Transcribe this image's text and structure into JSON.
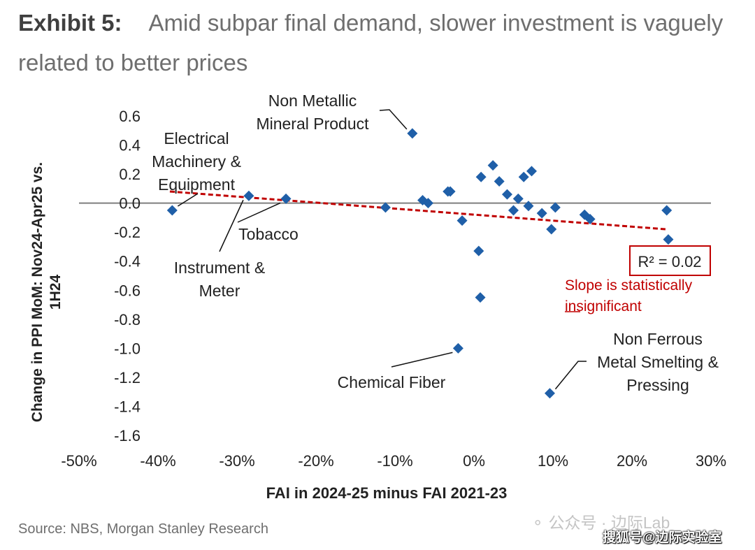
{
  "header": {
    "exhibit": "Exhibit 5:",
    "title": "Amid subpar final demand, slower investment is vaguely related to better prices"
  },
  "source": "Source: NBS, Morgan Stanley Research",
  "watermark": {
    "line1": "公众号 · 边际Lab",
    "line2": "搜狐号@边际实验室"
  },
  "colors": {
    "marker": "#1f5fa8",
    "trend": "#c00000",
    "zero_line": "#7f7f7f",
    "text": "#222222"
  },
  "chart_data": {
    "type": "scatter",
    "xlabel": "FAI in 2024-25 minus FAI 2021-23",
    "ylabel": "Change in PPI MoM: Nov24-Apr25 vs. 1H24",
    "xlim": [
      -50,
      30
    ],
    "ylim": [
      -1.6,
      0.6
    ],
    "xticks": [
      "-50%",
      "-40%",
      "-30%",
      "-20%",
      "-10%",
      "0%",
      "10%",
      "20%",
      "30%"
    ],
    "yticks": [
      "0.6",
      "0.4",
      "0.2",
      "0.0",
      "-0.2",
      "-0.4",
      "-0.6",
      "-0.8",
      "-1.0",
      "-1.2",
      "-1.4",
      "-1.6"
    ],
    "points": [
      {
        "x": -38.2,
        "y": -0.05
      },
      {
        "x": -28.5,
        "y": 0.05
      },
      {
        "x": -23.8,
        "y": 0.03
      },
      {
        "x": -11.2,
        "y": -0.03
      },
      {
        "x": -7.8,
        "y": 0.48
      },
      {
        "x": -6.5,
        "y": 0.02
      },
      {
        "x": -5.8,
        "y": 0.0
      },
      {
        "x": -3.3,
        "y": 0.08
      },
      {
        "x": -3.0,
        "y": 0.08
      },
      {
        "x": -2.0,
        "y": -1.0
      },
      {
        "x": -1.5,
        "y": -0.12
      },
      {
        "x": 0.6,
        "y": -0.33
      },
      {
        "x": 0.8,
        "y": -0.65
      },
      {
        "x": 0.9,
        "y": 0.18
      },
      {
        "x": 2.4,
        "y": 0.26
      },
      {
        "x": 3.2,
        "y": 0.15
      },
      {
        "x": 4.2,
        "y": 0.06
      },
      {
        "x": 5.0,
        "y": -0.05
      },
      {
        "x": 5.6,
        "y": 0.03
      },
      {
        "x": 6.3,
        "y": 0.18
      },
      {
        "x": 6.9,
        "y": -0.02
      },
      {
        "x": 7.3,
        "y": 0.22
      },
      {
        "x": 8.6,
        "y": -0.07
      },
      {
        "x": 9.6,
        "y": -1.31
      },
      {
        "x": 9.8,
        "y": -0.18
      },
      {
        "x": 10.3,
        "y": -0.03
      },
      {
        "x": 14.0,
        "y": -0.08
      },
      {
        "x": 14.7,
        "y": -0.11
      },
      {
        "x": 24.4,
        "y": -0.05
      },
      {
        "x": 24.6,
        "y": -0.25
      }
    ],
    "trendline": {
      "from": [
        -38.5,
        0.08
      ],
      "to": [
        24.3,
        -0.18
      ]
    },
    "r2_label": "R² = 0.02",
    "slope_note": [
      "Slope is statistically",
      "insignificant"
    ],
    "annotations": [
      {
        "lines": [
          "Non Metallic",
          "Mineral Product"
        ],
        "point": 4
      },
      {
        "lines": [
          "Electrical",
          "Machinery &",
          "Equipment"
        ],
        "point": 0
      },
      {
        "lines": [
          "Tobacco"
        ],
        "point": 2
      },
      {
        "lines": [
          "Instrument &",
          "Meter"
        ],
        "point": 1
      },
      {
        "lines": [
          "Chemical Fiber"
        ],
        "point": 9
      },
      {
        "lines": [
          "Non Ferrous",
          "Metal Smelting &",
          "Pressing"
        ],
        "point": 23
      }
    ]
  }
}
